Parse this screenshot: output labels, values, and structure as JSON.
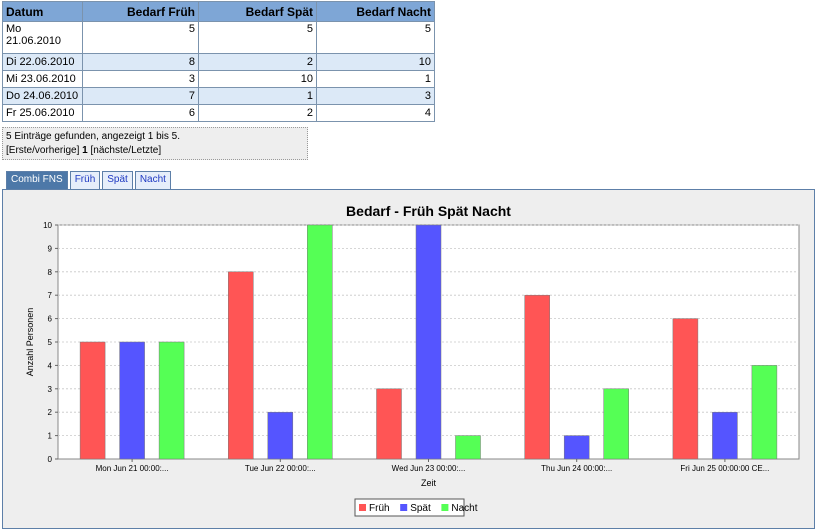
{
  "table": {
    "headers": [
      "Datum",
      "Bedarf Früh",
      "Bedarf Spät",
      "Bedarf Nacht"
    ],
    "rows": [
      {
        "date_line1": "Mo",
        "date_line2": "21.06.2010",
        "frueh": "5",
        "spaet": "5",
        "nacht": "5"
      },
      {
        "date": "Di 22.06.2010",
        "frueh": "8",
        "spaet": "2",
        "nacht": "10"
      },
      {
        "date": "Mi 23.06.2010",
        "frueh": "3",
        "spaet": "10",
        "nacht": "1"
      },
      {
        "date": "Do 24.06.2010",
        "frueh": "7",
        "spaet": "1",
        "nacht": "3"
      },
      {
        "date": "Fr 25.06.2010",
        "frueh": "6",
        "spaet": "2",
        "nacht": "4"
      }
    ]
  },
  "pager": {
    "summary": "5 Einträge gefunden, angezeigt 1 bis 5.",
    "first_prev": "[Erste/vorherige]",
    "current_page": "1",
    "next_last": "[nächste/Letzte]"
  },
  "tabs": [
    {
      "label": "Combi FNS",
      "active": true
    },
    {
      "label": "Früh",
      "active": false
    },
    {
      "label": "Spät",
      "active": false
    },
    {
      "label": "Nacht",
      "active": false
    }
  ],
  "chart_data": {
    "type": "bar",
    "title": "Bedarf - Früh Spät Nacht",
    "xlabel": "Zeit",
    "ylabel": "Anzahl Personen",
    "categories": [
      "Mon Jun 21 00:00:...",
      "Tue Jun 22 00:00:...",
      "Wed Jun 23 00:00:...",
      "Thu Jun 24 00:00:...",
      "Fri Jun 25 00:00:00 CE..."
    ],
    "ylim": [
      0,
      10
    ],
    "yticks": [
      0,
      1,
      2,
      3,
      4,
      5,
      6,
      7,
      8,
      9,
      10
    ],
    "grid": true,
    "legend_position": "bottom",
    "series": [
      {
        "name": "Früh",
        "color": "#ff5555",
        "values": [
          5,
          8,
          3,
          7,
          6
        ]
      },
      {
        "name": "Spät",
        "color": "#5555ff",
        "values": [
          5,
          2,
          10,
          1,
          2
        ]
      },
      {
        "name": "Nacht",
        "color": "#55ff55",
        "values": [
          5,
          10,
          1,
          3,
          4
        ]
      }
    ]
  }
}
